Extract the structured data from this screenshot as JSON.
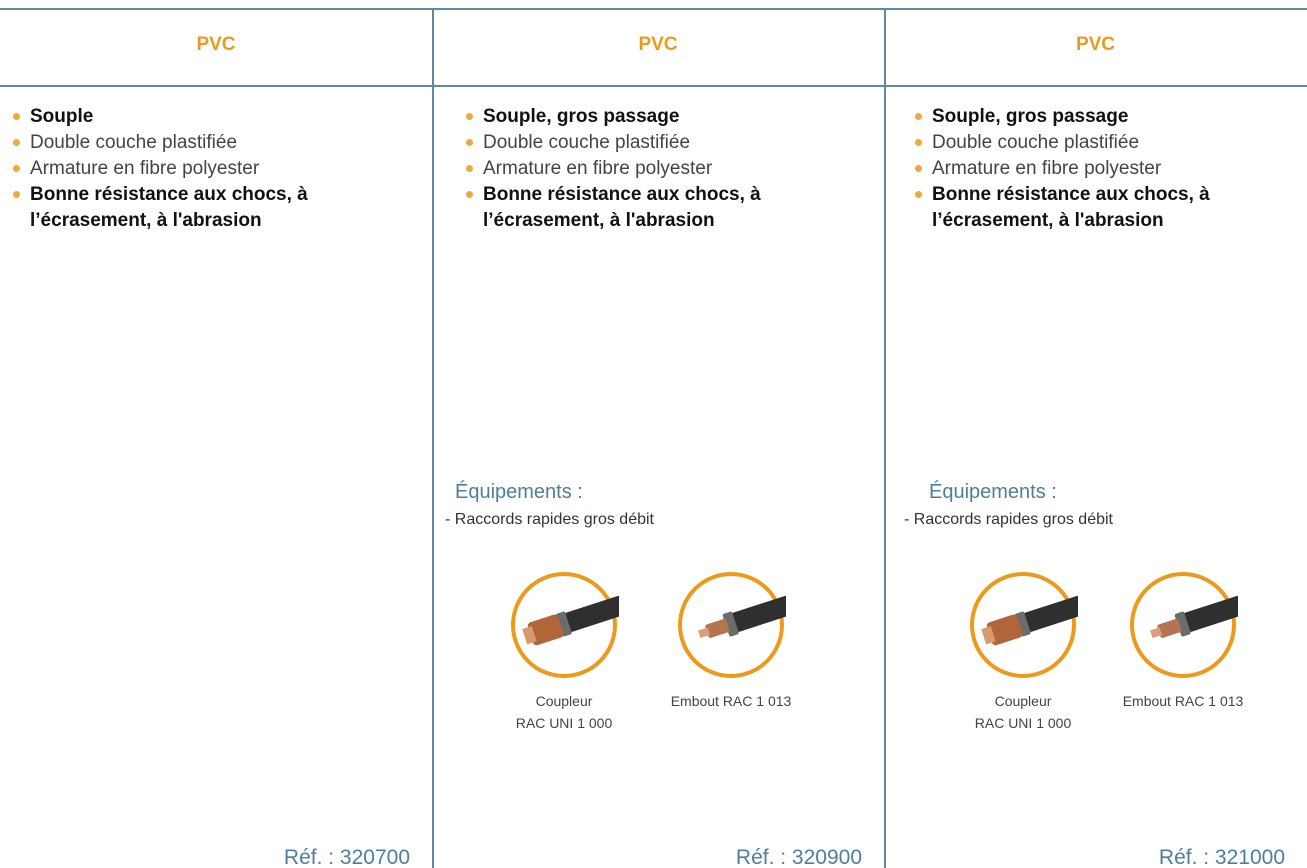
{
  "columns": [
    {
      "header": "PVC",
      "bullets": [
        {
          "text": "Souple",
          "bold": true
        },
        {
          "text": "Double couche plastifiée",
          "bold": false
        },
        {
          "text": "Armature en fibre polyester",
          "bold": false
        },
        {
          "text": "Bonne résistance aux chocs, à l’écrasement, à l'abrasion",
          "bold": true
        }
      ],
      "ref": "Réf. : 320700"
    },
    {
      "header": "PVC",
      "bullets": [
        {
          "text": "Souple, gros passage",
          "bold": true
        },
        {
          "text": "Double couche plastifiée",
          "bold": false
        },
        {
          "text": "Armature en fibre polyester",
          "bold": false
        },
        {
          "text": "Bonne résistance aux chocs, à l’écrasement, à l'abrasion",
          "bold": true
        }
      ],
      "equipment": {
        "title": "Équipements :",
        "item": "- Raccords rapides gros débit",
        "products": [
          {
            "caption": [
              "Coupleur",
              "RAC UNI 1 000"
            ]
          },
          {
            "caption": [
              "Embout RAC 1 013"
            ]
          }
        ]
      },
      "ref": "Réf. : 320900"
    },
    {
      "header": "PVC",
      "bullets": [
        {
          "text": "Souple, gros passage",
          "bold": true
        },
        {
          "text": "Double couche plastifiée",
          "bold": false
        },
        {
          "text": "Armature en fibre polyester",
          "bold": false
        },
        {
          "text": "Bonne résistance aux chocs, à l’écrasement, à l'abrasion",
          "bold": true
        }
      ],
      "equipment": {
        "title": "Équipements :",
        "item": "- Raccords rapides gros débit",
        "products": [
          {
            "caption": [
              "Coupleur",
              "RAC UNI 1 000"
            ]
          },
          {
            "caption": [
              "Embout RAC 1 013"
            ]
          }
        ]
      },
      "ref": "Réf. : 321000"
    }
  ]
}
